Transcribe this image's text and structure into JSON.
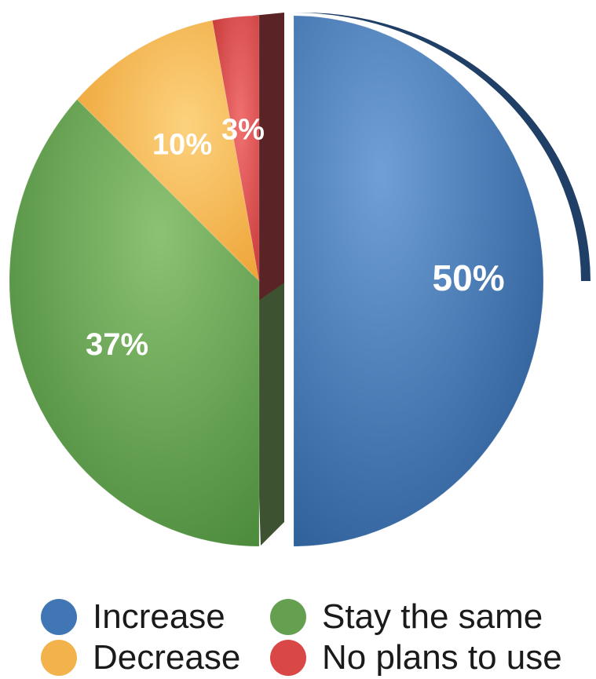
{
  "chart_data": {
    "type": "pie",
    "title": "",
    "slices": [
      {
        "label": "Increase",
        "value": 50,
        "display": "50%",
        "color": "#3f76b3"
      },
      {
        "label": "Stay the same",
        "value": 37,
        "display": "37%",
        "color": "#64a050"
      },
      {
        "label": "Decrease",
        "value": 10,
        "display": "10%",
        "color": "#f2b24c"
      },
      {
        "label": "No plans to use",
        "value": 3,
        "display": "3%",
        "color": "#d94747"
      }
    ],
    "legend_position": "bottom",
    "exploded_slice": "Increase"
  }
}
